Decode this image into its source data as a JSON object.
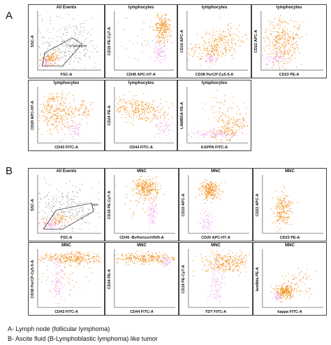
{
  "section_a": {
    "label": "A",
    "panels": [
      {
        "title": "All Events",
        "ylabel": "SSC-A",
        "xlabel": "FSC-A",
        "gate_label": "lymphocytes"
      },
      {
        "title": "lymphocytes",
        "ylabel": "CD19 PE-Cy7-A",
        "xlabel": "CD45 APC-H7-A"
      },
      {
        "title": "lymphocytes",
        "ylabel": "CD10 APC-A",
        "xlabel": "CD38 PerCP-Cy5-5-A"
      },
      {
        "title": "lymphocytes",
        "ylabel": "CD22 APC-A",
        "xlabel": "CD23 PE-A"
      },
      {
        "title": "lymphocytes",
        "ylabel": "CD20 APC-H7-A",
        "xlabel": "CD43 FITC-A"
      },
      {
        "title": "lymphocytes",
        "ylabel": "CD24 PE-A",
        "xlabel": "CD44 FITC-A"
      },
      {
        "title": "lymphocytes",
        "ylabel": "LAMBDA PE-A",
        "xlabel": "KAPPA FITC-A"
      }
    ]
  },
  "section_b": {
    "label": "B",
    "panels": [
      {
        "title": "All Events",
        "ylabel": "SSC-A",
        "xlabel": "FSC-A",
        "gate_label": "MNC"
      },
      {
        "title": "MNC",
        "ylabel": "CD19 PE-Cy7-A",
        "xlabel": "CD45 -BvHorizonV500-A"
      },
      {
        "title": "MNC",
        "ylabel": "CD10 APC-A",
        "xlabel": "CD20 APC-H7-A"
      },
      {
        "title": "MNC",
        "ylabel": "CD22 APC-A",
        "xlabel": "CD23 PE-A"
      },
      {
        "title": "MNC",
        "ylabel": "CD38 PerCP-Cy5-5-A",
        "xlabel": "CD43 FITC-A"
      },
      {
        "title": "MNC",
        "ylabel": "CD24 PE-A",
        "xlabel": "CD44 FITC-A"
      },
      {
        "title": "MNC",
        "ylabel": "CD19 PE-Cy7-A",
        "xlabel": "TDT FITC-A"
      },
      {
        "title": "MNC",
        "ylabel": "lamBda PE-A",
        "xlabel": "kappa FITC-A"
      }
    ]
  },
  "caption": {
    "line_a": "A- Lymph node (follicular lymphoma)",
    "line_b": "B- Ascite fluid (B-Lymphoblastic lymphoma) like tumor"
  },
  "colors": {
    "event_dots": "#f28c18",
    "other_dots": "#f0a8ee",
    "background_dots": "#a0a0a0",
    "gate": "#222222"
  }
}
